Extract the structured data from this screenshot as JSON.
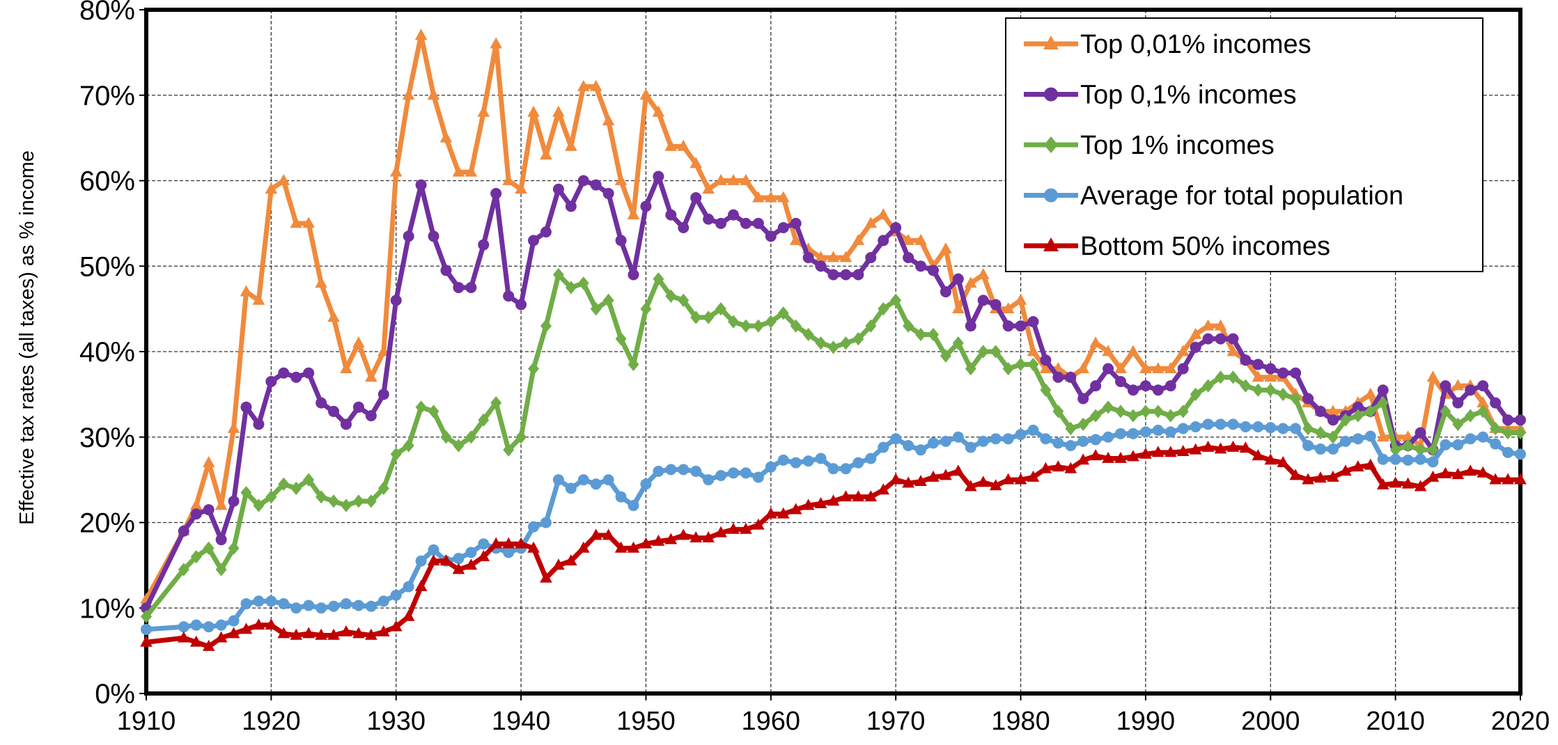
{
  "chart_data": {
    "type": "line",
    "y_label": "Effective tax rates (all taxes) as % income",
    "x": [
      1910,
      1913,
      1914,
      1915,
      1916,
      1917,
      1918,
      1919,
      1920,
      1921,
      1922,
      1923,
      1924,
      1925,
      1926,
      1927,
      1928,
      1929,
      1930,
      1931,
      1932,
      1933,
      1934,
      1935,
      1936,
      1937,
      1938,
      1939,
      1940,
      1941,
      1942,
      1943,
      1944,
      1945,
      1946,
      1947,
      1948,
      1949,
      1950,
      1951,
      1952,
      1953,
      1954,
      1955,
      1956,
      1957,
      1958,
      1959,
      1960,
      1961,
      1962,
      1963,
      1964,
      1965,
      1966,
      1967,
      1968,
      1969,
      1970,
      1971,
      1972,
      1973,
      1974,
      1975,
      1976,
      1977,
      1978,
      1979,
      1980,
      1981,
      1982,
      1983,
      1984,
      1985,
      1986,
      1987,
      1988,
      1989,
      1990,
      1991,
      1992,
      1993,
      1994,
      1995,
      1996,
      1997,
      1998,
      1999,
      2000,
      2001,
      2002,
      2003,
      2004,
      2005,
      2006,
      2007,
      2008,
      2009,
      2010,
      2011,
      2012,
      2013,
      2014,
      2015,
      2016,
      2017,
      2018,
      2019,
      2020
    ],
    "series": [
      {
        "name": "Top 0,01% incomes",
        "color": "#f08a3c",
        "marker": "triangle",
        "values": [
          11,
          19,
          22,
          27,
          22,
          31,
          47,
          46,
          59,
          60,
          55,
          55,
          48,
          44,
          38,
          41,
          37,
          40,
          61,
          70,
          77,
          70,
          65,
          61,
          61,
          68,
          76,
          60,
          59,
          68,
          63,
          68,
          64,
          71,
          71,
          67,
          60,
          56,
          70,
          68,
          64,
          64,
          62,
          59,
          60,
          60,
          60,
          58,
          58,
          58,
          53,
          52,
          51,
          51,
          51,
          53,
          55,
          56,
          54,
          53,
          53,
          50,
          52,
          45,
          48,
          49,
          45,
          45,
          46,
          40,
          38,
          38,
          37,
          38,
          41,
          40,
          38,
          40,
          38,
          38,
          38,
          40,
          42,
          43,
          43,
          40,
          39,
          37,
          37,
          37,
          35,
          34,
          33,
          33,
          33,
          34,
          35,
          30,
          30,
          30,
          29,
          37,
          35,
          36,
          36,
          34,
          31,
          31,
          31
        ]
      },
      {
        "name": "Top 0,1% incomes",
        "color": "#7030a0",
        "marker": "circle",
        "values": [
          10,
          19,
          21,
          21.5,
          18,
          22.5,
          33.5,
          31.5,
          36.5,
          37.5,
          37,
          37.5,
          34,
          33,
          31.5,
          33.5,
          32.5,
          35,
          46,
          53.5,
          59.5,
          53.5,
          49.5,
          47.5,
          47.5,
          52.5,
          58.5,
          46.5,
          45.5,
          53,
          54,
          59,
          57,
          60,
          59.5,
          58.5,
          53,
          49,
          57,
          60.5,
          56,
          54.5,
          58,
          55.5,
          55,
          56,
          55,
          55,
          53.5,
          54.5,
          55,
          51,
          50,
          49,
          49,
          49,
          51,
          53,
          54.5,
          51,
          50,
          49.5,
          47,
          48.5,
          43,
          46,
          45.5,
          43,
          43,
          43.5,
          39,
          37,
          37,
          34.5,
          36,
          38,
          36.5,
          35.5,
          36,
          35.5,
          36,
          38,
          40.5,
          41.5,
          41.5,
          41.5,
          39,
          38.5,
          38,
          37.5,
          37.5,
          34.5,
          33,
          32,
          32.5,
          33.5,
          33,
          35.5,
          29,
          29,
          30.5,
          28.5,
          36,
          34,
          35.5,
          36,
          34,
          32,
          32
        ]
      },
      {
        "name": "Top 1% incomes",
        "color": "#70ad47",
        "marker": "diamond",
        "values": [
          9,
          14.5,
          16,
          17,
          14.5,
          17,
          23.5,
          22,
          23,
          24.5,
          24,
          25,
          23,
          22.5,
          22,
          22.5,
          22.5,
          24,
          28,
          29,
          33.5,
          33,
          30,
          29,
          30,
          32,
          34,
          28.5,
          30,
          38,
          43,
          49,
          47.5,
          48,
          45,
          46,
          41.5,
          38.5,
          45,
          48.5,
          46.5,
          46,
          44,
          44,
          45,
          43.5,
          43,
          43,
          43.5,
          44.5,
          43,
          42,
          41,
          40.5,
          41,
          41.5,
          43,
          45,
          46,
          43,
          42,
          42,
          39.5,
          41,
          38,
          40,
          40,
          38,
          38.5,
          38.5,
          35.5,
          33,
          31,
          31.5,
          32.5,
          33.5,
          33,
          32.5,
          33,
          33,
          32.5,
          33,
          35,
          36,
          37,
          37,
          36,
          35.5,
          35.5,
          35,
          34.5,
          31,
          30.5,
          30,
          32,
          32.5,
          33,
          34,
          28.5,
          29,
          28.5,
          28.5,
          33,
          31.5,
          32.5,
          33,
          31,
          30.5,
          30.5
        ]
      },
      {
        "name": "Average for total population",
        "color": "#5b9bd5",
        "marker": "circle",
        "values": [
          7.5,
          7.8,
          8,
          7.8,
          8,
          8.5,
          10.5,
          10.8,
          10.8,
          10.5,
          10,
          10.3,
          10,
          10.2,
          10.5,
          10.3,
          10.2,
          10.8,
          11.5,
          12.5,
          15.5,
          16.8,
          15.5,
          15.8,
          16.5,
          17.5,
          17,
          16.5,
          17,
          19.5,
          20,
          25,
          24,
          25,
          24.5,
          25,
          23,
          22,
          24.5,
          26,
          26.2,
          26.2,
          26,
          25,
          25.5,
          25.8,
          25.8,
          25.3,
          26.5,
          27.3,
          27,
          27.2,
          27.5,
          26.3,
          26.3,
          27,
          27.5,
          28.8,
          29.8,
          29,
          28.5,
          29.3,
          29.5,
          30,
          28.8,
          29.5,
          29.8,
          29.8,
          30.3,
          30.8,
          29.8,
          29.3,
          29,
          29.5,
          29.7,
          30,
          30.4,
          30.4,
          30.6,
          30.8,
          30.6,
          31,
          31.2,
          31.5,
          31.5,
          31.5,
          31.2,
          31.2,
          31.1,
          31,
          31,
          29,
          28.6,
          28.6,
          29.5,
          29.8,
          30.1,
          27.4,
          27.4,
          27.3,
          27.4,
          27.1,
          29.1,
          29.1,
          29.8,
          30,
          29.2,
          28.2,
          28
        ]
      },
      {
        "name": "Bottom 50% incomes",
        "color": "#c00000",
        "marker": "triangle",
        "values": [
          6,
          6.5,
          6,
          5.5,
          6.5,
          7,
          7.5,
          8,
          8,
          7,
          6.8,
          7,
          6.8,
          6.8,
          7.2,
          7,
          6.8,
          7.2,
          7.8,
          9,
          12.5,
          15.5,
          15.5,
          14.5,
          15,
          16,
          17.5,
          17.5,
          17.5,
          17,
          13.5,
          15,
          15.5,
          17,
          18.5,
          18.5,
          17,
          17,
          17.5,
          17.8,
          18,
          18.5,
          18.2,
          18.2,
          18.8,
          19.2,
          19.2,
          19.7,
          21,
          21,
          21.5,
          22,
          22.2,
          22.5,
          23,
          23,
          23,
          23.8,
          25,
          24.6,
          24.8,
          25.3,
          25.5,
          26,
          24.2,
          24.7,
          24.3,
          25,
          25,
          25.3,
          26.3,
          26.5,
          26.3,
          27.3,
          27.8,
          27.5,
          27.5,
          27.7,
          28,
          28.2,
          28.2,
          28.3,
          28.5,
          28.8,
          28.6,
          28.8,
          28.7,
          27.8,
          27.3,
          27,
          25.5,
          25,
          25.2,
          25.3,
          26,
          26.5,
          26.7,
          24.4,
          24.6,
          24.5,
          24.2,
          25.3,
          25.7,
          25.6,
          26,
          25.8,
          25,
          25,
          25
        ]
      }
    ],
    "xlim": [
      1910,
      2020
    ],
    "xticks": [
      1910,
      1920,
      1930,
      1940,
      1950,
      1960,
      1970,
      1980,
      1990,
      2000,
      2010,
      2020
    ],
    "ylim": [
      0,
      80
    ],
    "yticks": [
      {
        "value": 0,
        "label": "0%"
      },
      {
        "value": 10,
        "label": "10%"
      },
      {
        "value": 20,
        "label": "20%"
      },
      {
        "value": 30,
        "label": "30%"
      },
      {
        "value": 40,
        "label": "40%"
      },
      {
        "value": 50,
        "label": "50%"
      },
      {
        "value": 60,
        "label": "60%"
      },
      {
        "value": 70,
        "label": "70%"
      },
      {
        "value": 80,
        "label": "80%"
      }
    ],
    "grid": true,
    "legend": "upper right"
  }
}
